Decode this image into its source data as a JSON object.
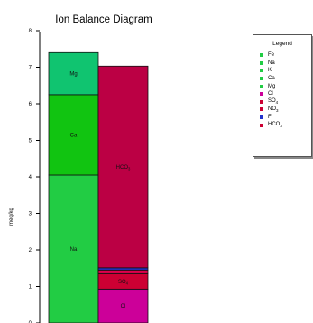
{
  "chart_data": {
    "type": "bar",
    "stacked": true,
    "title": "Ion Balance Diagram",
    "ylabel": "meq/kg",
    "ylim": [
      0,
      8
    ],
    "yticks": [
      "0",
      "1",
      "2",
      "3",
      "4",
      "5",
      "6",
      "7",
      "8"
    ],
    "bars": [
      {
        "segments": [
          {
            "ion": "Na",
            "value": 4.05,
            "color": "#22cc44",
            "label": "Na"
          },
          {
            "ion": "Ca",
            "value": 2.2,
            "color": "#11c411",
            "label": "Ca"
          },
          {
            "ion": "Mg",
            "value": 1.15,
            "color": "#10c470",
            "label": "Mg"
          }
        ]
      },
      {
        "segments": [
          {
            "ion": "Cl",
            "value": 0.93,
            "color": "#cc0099",
            "label": "Cl"
          },
          {
            "ion": "SO4",
            "value": 0.42,
            "color": "#cc0033",
            "label": "SO4"
          },
          {
            "ion": "NO3",
            "value": 0.1,
            "color": "#e0004c",
            "label": ""
          },
          {
            "ion": "F",
            "value": 0.06,
            "color": "#2233cc",
            "label": ""
          },
          {
            "ion": "HCO3",
            "value": 5.52,
            "color": "#bb0044",
            "label": "HCO3"
          }
        ]
      }
    ],
    "legend": {
      "title": "Legend",
      "position": "top-right",
      "items": [
        {
          "label": "Fe",
          "color": "#22cc44"
        },
        {
          "label": "Na",
          "color": "#22cc44"
        },
        {
          "label": "K",
          "color": "#22cc44"
        },
        {
          "label": "Ca",
          "color": "#22cc44"
        },
        {
          "label": "Mg",
          "color": "#22cc44"
        },
        {
          "label": "Cl",
          "color": "#cc0099"
        },
        {
          "label": "SO4",
          "color": "#cc0033"
        },
        {
          "label": "NO3",
          "color": "#cc0033"
        },
        {
          "label": "F",
          "color": "#2233cc"
        },
        {
          "label": "HCO3",
          "color": "#cc0033"
        }
      ]
    }
  }
}
